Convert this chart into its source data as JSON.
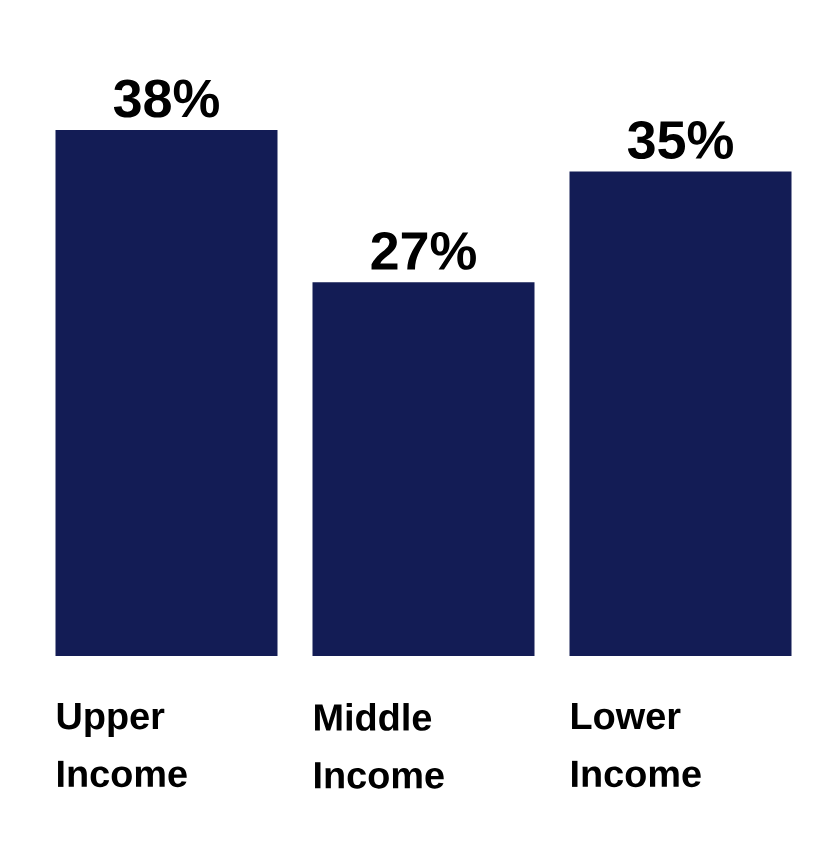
{
  "chart_data": {
    "type": "bar",
    "categories": [
      "Upper Income",
      "Middle Income",
      "Lower Income"
    ],
    "values": [
      38,
      27,
      35
    ],
    "value_labels": [
      "38%",
      "27%",
      "35%"
    ],
    "color": "#131c55"
  }
}
